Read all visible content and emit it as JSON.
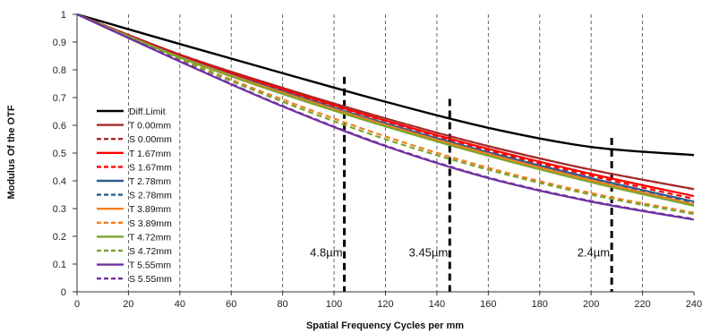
{
  "chart_data": {
    "type": "line",
    "title": "",
    "xlabel": "Spatial Frequency Cycles per mm",
    "ylabel": "Modulus Of  the OTF",
    "xlim": [
      0,
      240
    ],
    "ylim": [
      0,
      1
    ],
    "xticks": [
      0,
      20,
      40,
      60,
      80,
      100,
      120,
      140,
      160,
      180,
      200,
      220,
      240
    ],
    "yticks": [
      0,
      0.1,
      0.2,
      0.3,
      0.4,
      0.5,
      0.6,
      0.7,
      0.8,
      0.9,
      1
    ],
    "vertical_grid": "dashed",
    "legend_position": "left",
    "series": [
      {
        "name": "Diff.Limit",
        "color": "#000000",
        "dash": "solid",
        "x": [
          0,
          40,
          80,
          120,
          160,
          200,
          240
        ],
        "y": [
          1,
          0.893,
          0.788,
          0.685,
          0.591,
          0.522,
          0.493
        ]
      },
      {
        "name": "T 0.00mm",
        "color": "#a52a2a",
        "dash": "solid",
        "x": [
          0,
          40,
          80,
          120,
          160,
          200,
          240
        ],
        "y": [
          1,
          0.855,
          0.735,
          0.625,
          0.525,
          0.44,
          0.37
        ]
      },
      {
        "name": "S 0.00mm",
        "color": "#a52a2a",
        "dash": "dashed",
        "x": [
          0,
          40,
          80,
          120,
          160,
          200,
          240
        ],
        "y": [
          1,
          0.855,
          0.735,
          0.625,
          0.525,
          0.44,
          0.37
        ]
      },
      {
        "name": "T 1.67mm",
        "color": "#ff0000",
        "dash": "solid",
        "x": [
          0,
          40,
          80,
          120,
          160,
          200,
          240
        ],
        "y": [
          1,
          0.852,
          0.73,
          0.617,
          0.515,
          0.425,
          0.345
        ]
      },
      {
        "name": "S 1.67mm",
        "color": "#ff0000",
        "dash": "dashed",
        "x": [
          0,
          40,
          80,
          120,
          160,
          200,
          240
        ],
        "y": [
          1,
          0.85,
          0.728,
          0.615,
          0.51,
          0.418,
          0.335
        ]
      },
      {
        "name": "T 2.78mm",
        "color": "#2e5b8c",
        "dash": "solid",
        "x": [
          0,
          40,
          80,
          120,
          160,
          200,
          240
        ],
        "y": [
          1,
          0.848,
          0.722,
          0.607,
          0.503,
          0.41,
          0.325
        ]
      },
      {
        "name": "S 2.78mm",
        "color": "#2e5b8c",
        "dash": "dashed",
        "x": [
          0,
          40,
          80,
          120,
          160,
          200,
          240
        ],
        "y": [
          1,
          0.847,
          0.72,
          0.605,
          0.5,
          0.406,
          0.32
        ]
      },
      {
        "name": "T 3.89mm",
        "color": "#f08020",
        "dash": "solid",
        "x": [
          0,
          40,
          80,
          120,
          160,
          200,
          240
        ],
        "y": [
          1,
          0.846,
          0.718,
          0.602,
          0.497,
          0.402,
          0.315
        ]
      },
      {
        "name": "S 3.89mm",
        "color": "#f08020",
        "dash": "dashed",
        "x": [
          0,
          40,
          80,
          120,
          160,
          200,
          240
        ],
        "y": [
          1,
          0.84,
          0.693,
          0.56,
          0.447,
          0.356,
          0.285
        ]
      },
      {
        "name": "T 4.72mm",
        "color": "#7ea32e",
        "dash": "solid",
        "x": [
          0,
          40,
          80,
          120,
          160,
          200,
          240
        ],
        "y": [
          1,
          0.844,
          0.713,
          0.596,
          0.49,
          0.395,
          0.31
        ]
      },
      {
        "name": "S 4.72mm",
        "color": "#7ea32e",
        "dash": "dashed",
        "x": [
          0,
          40,
          80,
          120,
          160,
          200,
          240
        ],
        "y": [
          1,
          0.838,
          0.685,
          0.55,
          0.44,
          0.35,
          0.28
        ]
      },
      {
        "name": "T 5.55mm",
        "color": "#7030a0",
        "dash": "solid",
        "x": [
          0,
          40,
          80,
          120,
          160,
          200,
          240
        ],
        "y": [
          1,
          0.83,
          0.668,
          0.525,
          0.41,
          0.325,
          0.26
        ]
      },
      {
        "name": "S 5.55mm",
        "color": "#7030a0",
        "dash": "dashed",
        "x": [
          0,
          40,
          80,
          120,
          160,
          200,
          240
        ],
        "y": [
          1,
          0.832,
          0.67,
          0.527,
          0.412,
          0.327,
          0.262
        ]
      }
    ],
    "annotations": [
      {
        "label": "4.8µm",
        "x": 104,
        "y_top": 0.775
      },
      {
        "label": "3.45µm",
        "x": 145,
        "y_top": 0.695
      },
      {
        "label": "2.4µm",
        "x": 208,
        "y_top": 0.555
      }
    ]
  }
}
